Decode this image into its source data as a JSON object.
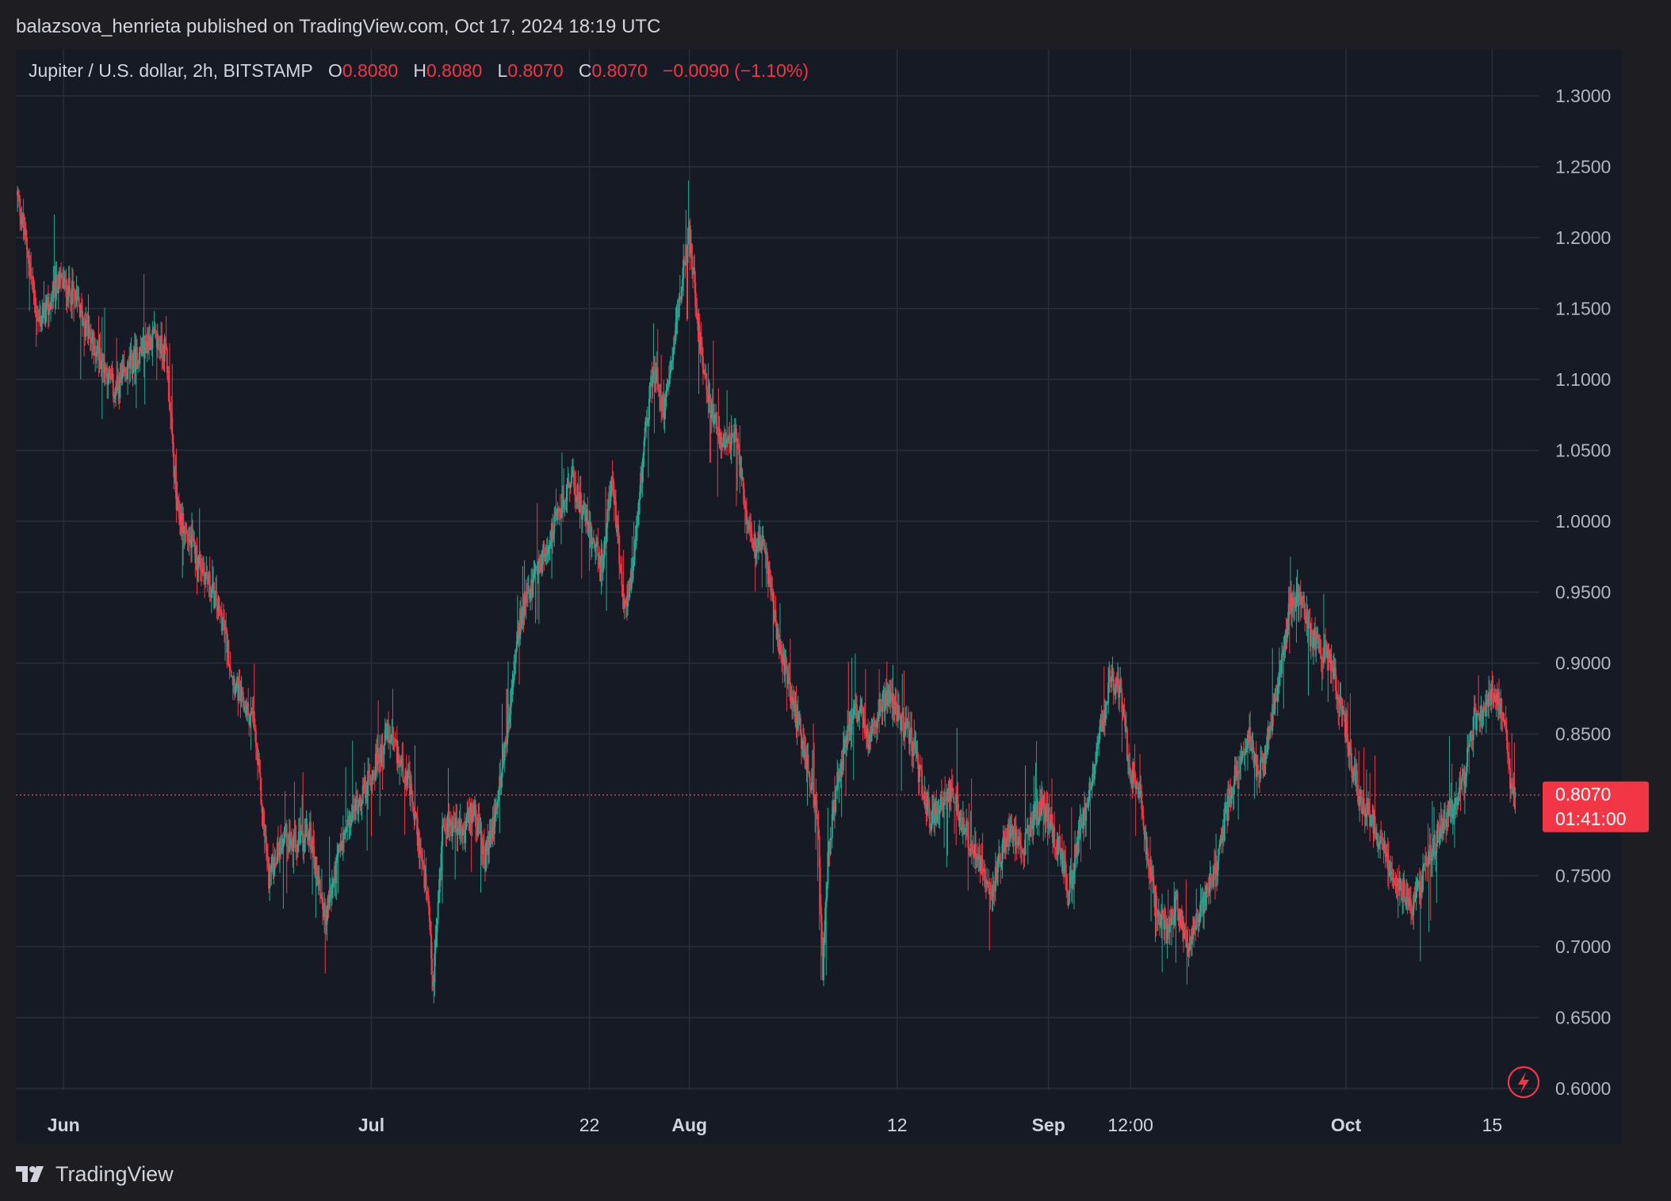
{
  "header": {
    "publisher": "balazsova_henrieta published on TradingView.com, Oct 17, 2024 18:19 UTC"
  },
  "legend": {
    "symbol": "Jupiter / U.S. dollar, 2h, BITSTAMP",
    "o_label": "O",
    "o_value": "0.8080",
    "h_label": "H",
    "h_value": "0.8080",
    "l_label": "L",
    "l_value": "0.8070",
    "c_label": "C",
    "c_value": "0.8070",
    "change": "−0.0090 (−1.10%)"
  },
  "price_tag": {
    "price": "0.8070",
    "countdown": "01:41:00"
  },
  "footer": {
    "brand": "TradingView"
  },
  "colors": {
    "up": "#22ab94",
    "down": "#f23645",
    "grid": "#2a2e39",
    "background": "#161a25",
    "page": "#1e1e22",
    "text": "#d1d4dc"
  },
  "icons": {
    "lightning": "lightning-icon",
    "logo": "tradingview-logo-icon"
  },
  "chart_data": {
    "type": "candlestick",
    "interval": "2h",
    "y_ticks": [
      "1.3000",
      "1.2500",
      "1.2000",
      "1.1500",
      "1.1000",
      "1.0500",
      "1.0000",
      "0.9500",
      "0.9000",
      "0.8500",
      "0.7500",
      "0.7000",
      "0.6500",
      "0.6000"
    ],
    "ylim": [
      0.6,
      1.3
    ],
    "x_ticks": [
      {
        "label": "Jun",
        "t": 4.5,
        "bold": true
      },
      {
        "label": "Jul",
        "t": 34.5,
        "bold": true
      },
      {
        "label": "22",
        "t": 55.75
      },
      {
        "label": "Aug",
        "t": 65.5,
        "bold": true
      },
      {
        "label": "12",
        "t": 85.75
      },
      {
        "label": "Sep",
        "t": 100.5,
        "bold": true
      },
      {
        "label": "12:00",
        "t": 108.5
      },
      {
        "label": "Oct",
        "t": 129.5,
        "bold": true
      },
      {
        "label": "15",
        "t": 143.75
      }
    ],
    "x_range_days": [
      0,
      146.5
    ],
    "last_price": 0.807,
    "grid": true,
    "anchors": [
      [
        0.0,
        1.23
      ],
      [
        1.0,
        1.19
      ],
      [
        2.0,
        1.14
      ],
      [
        3.0,
        1.15
      ],
      [
        4.0,
        1.17
      ],
      [
        5.5,
        1.16
      ],
      [
        7.0,
        1.13
      ],
      [
        8.5,
        1.11
      ],
      [
        9.5,
        1.09
      ],
      [
        11.0,
        1.11
      ],
      [
        13.0,
        1.13
      ],
      [
        14.5,
        1.12
      ],
      [
        15.5,
        1.01
      ],
      [
        16.5,
        0.99
      ],
      [
        18.5,
        0.96
      ],
      [
        20.0,
        0.93
      ],
      [
        21.0,
        0.89
      ],
      [
        22.0,
        0.87
      ],
      [
        23.0,
        0.86
      ],
      [
        24.5,
        0.75
      ],
      [
        26.0,
        0.78
      ],
      [
        27.0,
        0.77
      ],
      [
        28.5,
        0.78
      ],
      [
        30.0,
        0.72
      ],
      [
        31.5,
        0.77
      ],
      [
        33.0,
        0.8
      ],
      [
        34.5,
        0.82
      ],
      [
        36.0,
        0.85
      ],
      [
        38.0,
        0.82
      ],
      [
        39.0,
        0.78
      ],
      [
        40.0,
        0.73
      ],
      [
        40.5,
        0.67
      ],
      [
        41.5,
        0.79
      ],
      [
        43.5,
        0.78
      ],
      [
        44.5,
        0.8
      ],
      [
        45.5,
        0.76
      ],
      [
        46.5,
        0.79
      ],
      [
        47.5,
        0.84
      ],
      [
        49.0,
        0.93
      ],
      [
        50.5,
        0.96
      ],
      [
        52.0,
        0.99
      ],
      [
        54.0,
        1.03
      ],
      [
        55.0,
        1.01
      ],
      [
        56.0,
        0.99
      ],
      [
        57.0,
        0.97
      ],
      [
        58.0,
        1.03
      ],
      [
        58.5,
        0.99
      ],
      [
        59.0,
        0.94
      ],
      [
        60.0,
        0.96
      ],
      [
        61.0,
        1.05
      ],
      [
        62.0,
        1.11
      ],
      [
        63.0,
        1.08
      ],
      [
        64.0,
        1.13
      ],
      [
        65.0,
        1.18
      ],
      [
        65.5,
        1.2
      ],
      [
        66.5,
        1.13
      ],
      [
        67.5,
        1.08
      ],
      [
        69.0,
        1.05
      ],
      [
        70.0,
        1.06
      ],
      [
        71.0,
        1.01
      ],
      [
        72.0,
        0.98
      ],
      [
        72.5,
        0.99
      ],
      [
        73.5,
        0.95
      ],
      [
        74.0,
        0.92
      ],
      [
        75.0,
        0.89
      ],
      [
        76.0,
        0.86
      ],
      [
        77.0,
        0.83
      ],
      [
        78.0,
        0.79
      ],
      [
        78.5,
        0.68
      ],
      [
        79.0,
        0.76
      ],
      [
        80.0,
        0.82
      ],
      [
        81.0,
        0.85
      ],
      [
        82.0,
        0.87
      ],
      [
        83.0,
        0.84
      ],
      [
        84.0,
        0.87
      ],
      [
        85.0,
        0.88
      ],
      [
        86.0,
        0.86
      ],
      [
        87.0,
        0.85
      ],
      [
        88.0,
        0.82
      ],
      [
        89.0,
        0.79
      ],
      [
        90.0,
        0.8
      ],
      [
        91.0,
        0.81
      ],
      [
        92.0,
        0.79
      ],
      [
        93.0,
        0.77
      ],
      [
        94.0,
        0.76
      ],
      [
        95.0,
        0.74
      ],
      [
        96.5,
        0.78
      ],
      [
        98.0,
        0.77
      ],
      [
        99.0,
        0.79
      ],
      [
        100.0,
        0.8
      ],
      [
        101.5,
        0.77
      ],
      [
        102.5,
        0.74
      ],
      [
        103.5,
        0.78
      ],
      [
        104.5,
        0.81
      ],
      [
        105.5,
        0.85
      ],
      [
        106.5,
        0.89
      ],
      [
        107.5,
        0.88
      ],
      [
        108.5,
        0.82
      ],
      [
        109.5,
        0.81
      ],
      [
        110.0,
        0.77
      ],
      [
        111.0,
        0.73
      ],
      [
        112.0,
        0.71
      ],
      [
        113.0,
        0.73
      ],
      [
        114.0,
        0.7
      ],
      [
        115.0,
        0.72
      ],
      [
        116.0,
        0.74
      ],
      [
        117.0,
        0.76
      ],
      [
        118.0,
        0.8
      ],
      [
        119.0,
        0.83
      ],
      [
        120.0,
        0.85
      ],
      [
        121.0,
        0.82
      ],
      [
        122.0,
        0.85
      ],
      [
        123.0,
        0.89
      ],
      [
        124.0,
        0.94
      ],
      [
        125.0,
        0.95
      ],
      [
        126.0,
        0.92
      ],
      [
        127.0,
        0.91
      ],
      [
        128.0,
        0.9
      ],
      [
        129.0,
        0.87
      ],
      [
        130.0,
        0.83
      ],
      [
        131.0,
        0.8
      ],
      [
        132.0,
        0.79
      ],
      [
        133.0,
        0.77
      ],
      [
        134.0,
        0.75
      ],
      [
        135.0,
        0.74
      ],
      [
        136.0,
        0.73
      ],
      [
        137.0,
        0.75
      ],
      [
        138.0,
        0.77
      ],
      [
        139.0,
        0.79
      ],
      [
        140.0,
        0.8
      ],
      [
        141.0,
        0.82
      ],
      [
        142.0,
        0.86
      ],
      [
        143.0,
        0.87
      ],
      [
        144.0,
        0.88
      ],
      [
        145.0,
        0.86
      ],
      [
        145.5,
        0.82
      ],
      [
        146.0,
        0.807
      ]
    ]
  }
}
